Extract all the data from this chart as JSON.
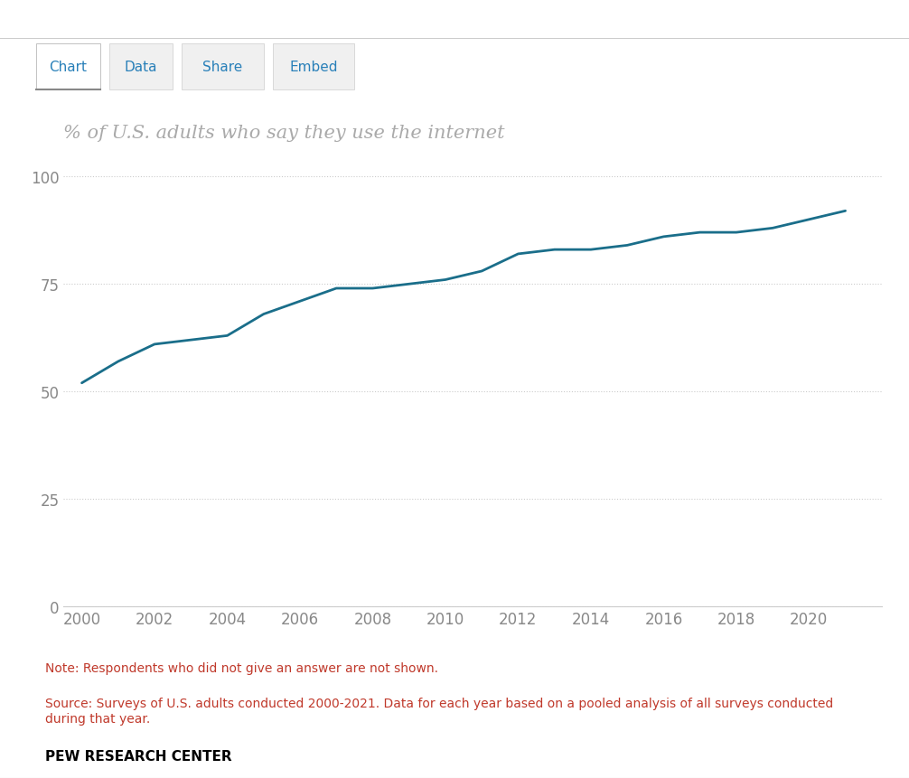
{
  "years": [
    2000,
    2001,
    2002,
    2003,
    2004,
    2005,
    2006,
    2007,
    2008,
    2009,
    2010,
    2011,
    2012,
    2013,
    2014,
    2015,
    2016,
    2017,
    2018,
    2019,
    2020,
    2021
  ],
  "values": [
    52,
    57,
    61,
    62,
    63,
    68,
    71,
    74,
    74,
    75,
    76,
    78,
    82,
    83,
    83,
    84,
    86,
    87,
    87,
    88,
    90,
    92
  ],
  "line_color": "#1a6e8a",
  "line_width": 2.0,
  "title": "% of U.S. adults who say they use the internet",
  "title_color": "#aaaaaa",
  "title_fontsize": 15,
  "yticks": [
    0,
    25,
    50,
    75,
    100
  ],
  "xticks": [
    2000,
    2002,
    2004,
    2006,
    2008,
    2010,
    2012,
    2014,
    2016,
    2018,
    2020
  ],
  "ylim": [
    0,
    105
  ],
  "xlim": [
    1999.5,
    2022
  ],
  "grid_color": "#cccccc",
  "grid_style": "dotted",
  "axis_color": "#cccccc",
  "tick_color": "#888888",
  "tick_fontsize": 12,
  "bg_color": "#ffffff",
  "note_text": "Note: Respondents who did not give an answer are not shown.",
  "source_text": "Source: Surveys of U.S. adults conducted 2000-2021. Data for each year based on a pooled analysis of all surveys conducted\nduring that year.",
  "footer_text": "PEW RESEARCH CENTER",
  "note_color": "#c0392b",
  "source_color": "#c0392b",
  "footer_color": "#000000",
  "tab_labels": [
    "Chart",
    "Data",
    "Share",
    "Embed"
  ],
  "tab_color": "#2980b9"
}
